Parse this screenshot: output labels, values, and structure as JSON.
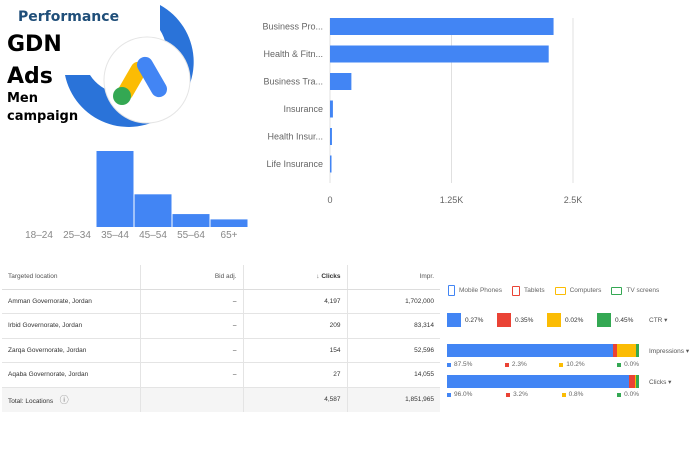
{
  "logo": {
    "performance": "Performance",
    "gdn": "GDN",
    "ads": "Ads",
    "men": "Men",
    "campaign": "campaign",
    "ring_color": "#2a73d9",
    "brand_blue": "#4285f4",
    "brand_yellow": "#fbbc04",
    "brand_green": "#34a853"
  },
  "chart_data": [
    {
      "type": "bar",
      "orientation": "horizontal",
      "categories": [
        "Business Pro...",
        "Health & Fitn...",
        "Business Tra...",
        "Insurance",
        "Health Insur...",
        "Life Insurance"
      ],
      "values": [
        2300,
        2250,
        220,
        30,
        20,
        10
      ],
      "xticks": [
        "0",
        "1.25K",
        "2.5K"
      ],
      "xlim": [
        0,
        2500
      ],
      "color": "#4285f4",
      "grid": true
    },
    {
      "type": "bar",
      "categories": [
        "18–24",
        "25–34",
        "35–44",
        "45–54",
        "55–64",
        "65+"
      ],
      "values": [
        0,
        0,
        100,
        43,
        17,
        10
      ],
      "ylim": [
        0,
        100
      ],
      "color": "#4285f4"
    }
  ],
  "table": {
    "headers": [
      "Targeted location",
      "Bid adj.",
      "Clicks",
      "Impr."
    ],
    "sort_icon": "arrow-down-icon",
    "rows": [
      [
        "Amman Governorate, Jordan",
        "–",
        "4,197",
        "1,702,000"
      ],
      [
        "Irbid Governorate, Jordan",
        "–",
        "209",
        "83,314"
      ],
      [
        "Zarqa Governorate, Jordan",
        "–",
        "154",
        "52,596"
      ],
      [
        "Aqaba Governorate, Jordan",
        "–",
        "27",
        "14,055"
      ]
    ],
    "total": [
      "Total: Locations",
      "",
      "4,587",
      "1,851,965"
    ],
    "help_icon": "help-circle-icon"
  },
  "devices": {
    "legend": [
      {
        "label": "Mobile Phones",
        "color": "#4285f4",
        "icon": "phone-icon"
      },
      {
        "label": "Tablets",
        "color": "#ea4335",
        "icon": "tablet-icon"
      },
      {
        "label": "Computers",
        "color": "#fbbc04",
        "icon": "computer-icon"
      },
      {
        "label": "TV screens",
        "color": "#34a853",
        "icon": "tv-icon"
      }
    ],
    "ctr": {
      "values": [
        "0.27%",
        "0.35%",
        "0.02%",
        "0.45%"
      ],
      "selector": "CTR"
    },
    "impressions": {
      "shares": [
        87.5,
        2.3,
        10.2,
        0.0
      ],
      "labels": [
        "87.5%",
        "2.3%",
        "10.2%",
        "0.0%"
      ],
      "selector": "Impressions"
    },
    "clicks": {
      "shares": [
        96.0,
        3.2,
        0.8,
        0.0
      ],
      "labels": [
        "96.0%",
        "3.2%",
        "0.8%",
        "0.0%"
      ],
      "selector": "Clicks"
    }
  }
}
